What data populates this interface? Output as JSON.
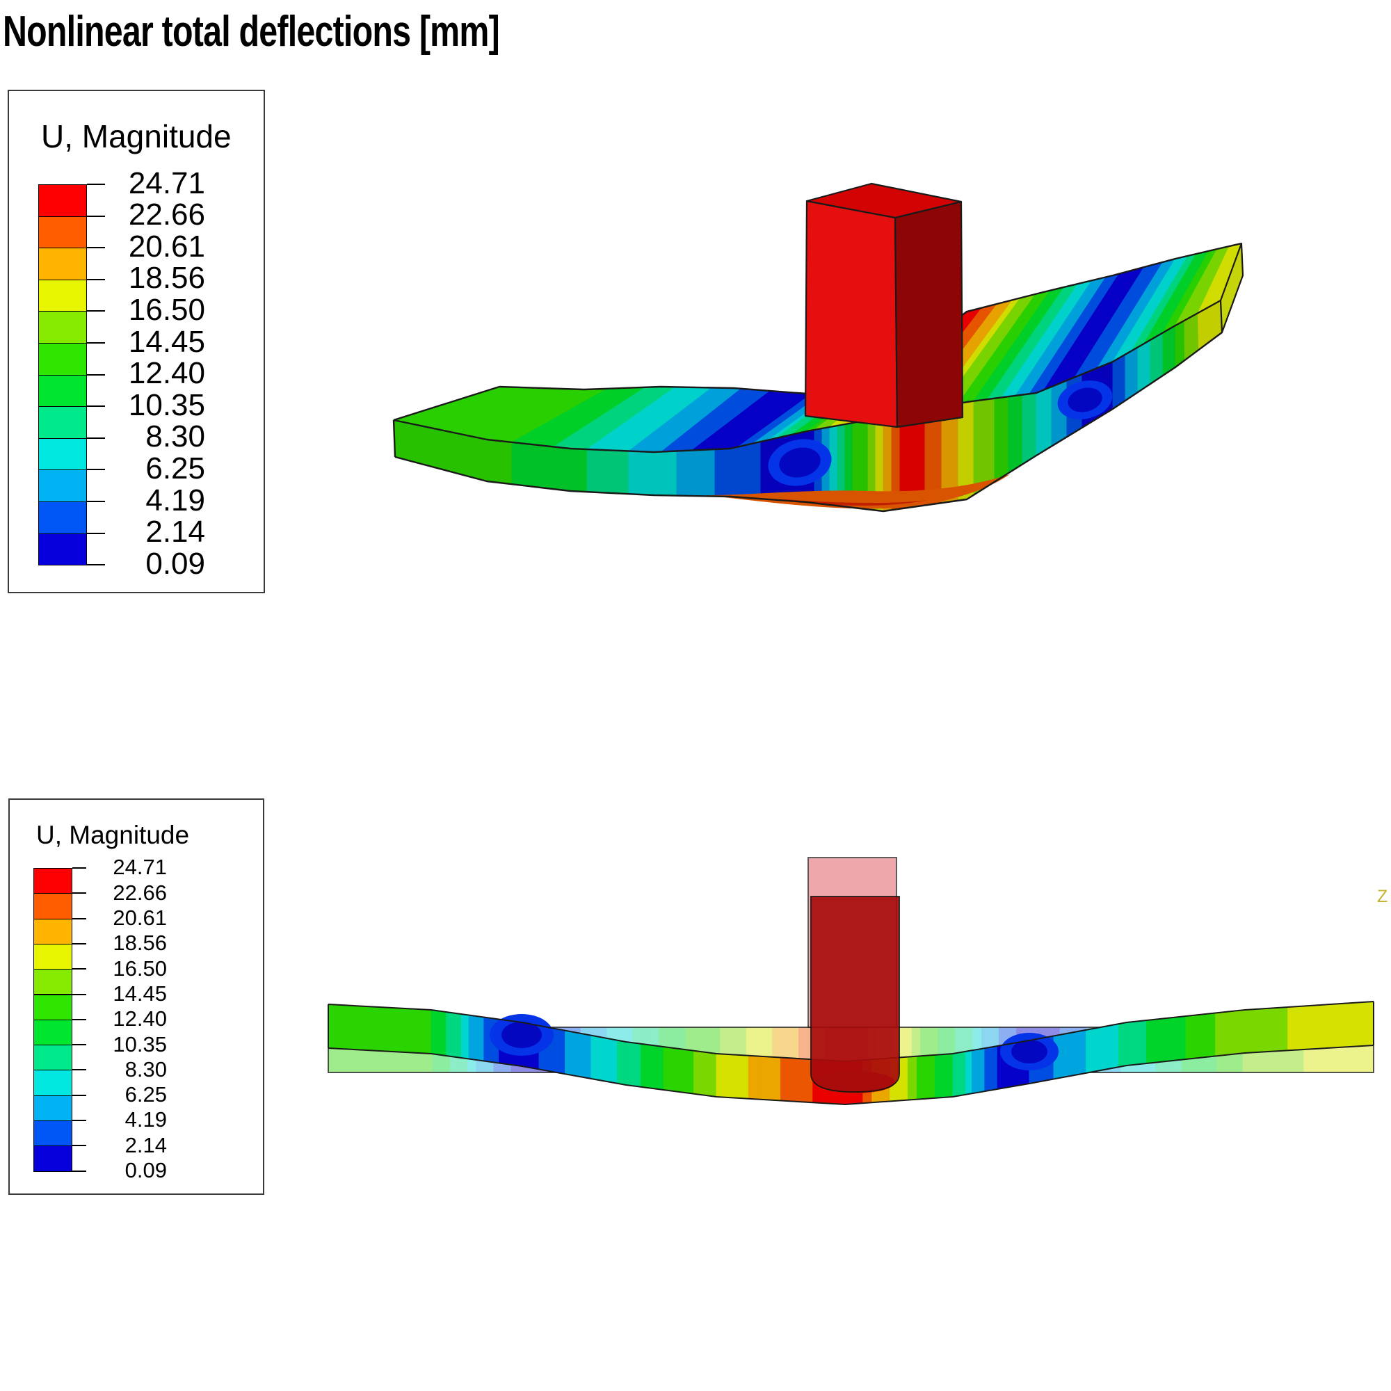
{
  "title": "Nonlinear total deflections [mm]",
  "legend_primary": {
    "title": "U, Magnitude",
    "labels": [
      "24.71",
      "22.66",
      "20.61",
      "18.56",
      "16.50",
      "14.45",
      "12.40",
      "10.35",
      "8.30",
      "6.25",
      "4.19",
      "2.14",
      "0.09"
    ]
  },
  "legend_secondary": {
    "title": "U, Magnitude",
    "labels": [
      "24.71",
      "22.66",
      "20.61",
      "18.56",
      "16.50",
      "14.45",
      "12.40",
      "10.35",
      "8.30",
      "6.25",
      "4.19",
      "2.14",
      "0.09"
    ]
  },
  "value_range": {
    "min": 0.09,
    "max": 24.71,
    "units": "mm"
  },
  "spectrum_top_to_bottom": [
    "#ff0000",
    "#ff5d00",
    "#ffb400",
    "#e8f500",
    "#86ea00",
    "#2ee600",
    "#00e62e",
    "#00ea8c",
    "#00e8e0",
    "#00b2f2",
    "#0055f5",
    "#0700dd"
  ],
  "axis_triad": {
    "label": "Z",
    "color": "#c4b42c"
  },
  "model_colors": {
    "punch_front": "#e60f0f",
    "punch_top": "#d40303",
    "punch_side": "#8e0505",
    "punch_ghost": "#ea9297",
    "punch_pressed": "#a80c0c",
    "punch_pressed_base": "#c11505",
    "left_cap": "#5fd60a",
    "right_cap": "#c6d40c",
    "node_outer": "#0433e8",
    "node_inner": "#0407c0",
    "underside_outer": "#d85400",
    "underside_core": "#c02000",
    "outline": "#1a1a1a"
  },
  "chart_data": {
    "type": "heatmap",
    "title": "Nonlinear total deflections [mm]",
    "legend_title": "U, Magnitude",
    "units": "mm",
    "contour_levels": [
      24.71,
      22.66,
      20.61,
      18.56,
      16.5,
      14.45,
      12.4,
      10.35,
      8.3,
      6.25,
      4.19,
      2.14,
      0.09
    ],
    "band_colors_top_to_bottom": [
      "#ff0000",
      "#ff5d00",
      "#ffb400",
      "#e8f500",
      "#86ea00",
      "#2ee600",
      "#00e62e",
      "#00ea8c",
      "#00e8e0",
      "#00b2f2",
      "#0055f5",
      "#0700dd"
    ],
    "min": 0.09,
    "max": 24.71,
    "views": [
      "isometric deformed plate with rigid red punch at center, displacement magnitude contours",
      "front elevation of deformed plate with translucent undeformed shape and punch ghost overlay"
    ],
    "notes": "Plate ends deflect up (~13-17 mm), zero-displacement nodes at quarter spans, maximum 24.71 mm under punch"
  }
}
